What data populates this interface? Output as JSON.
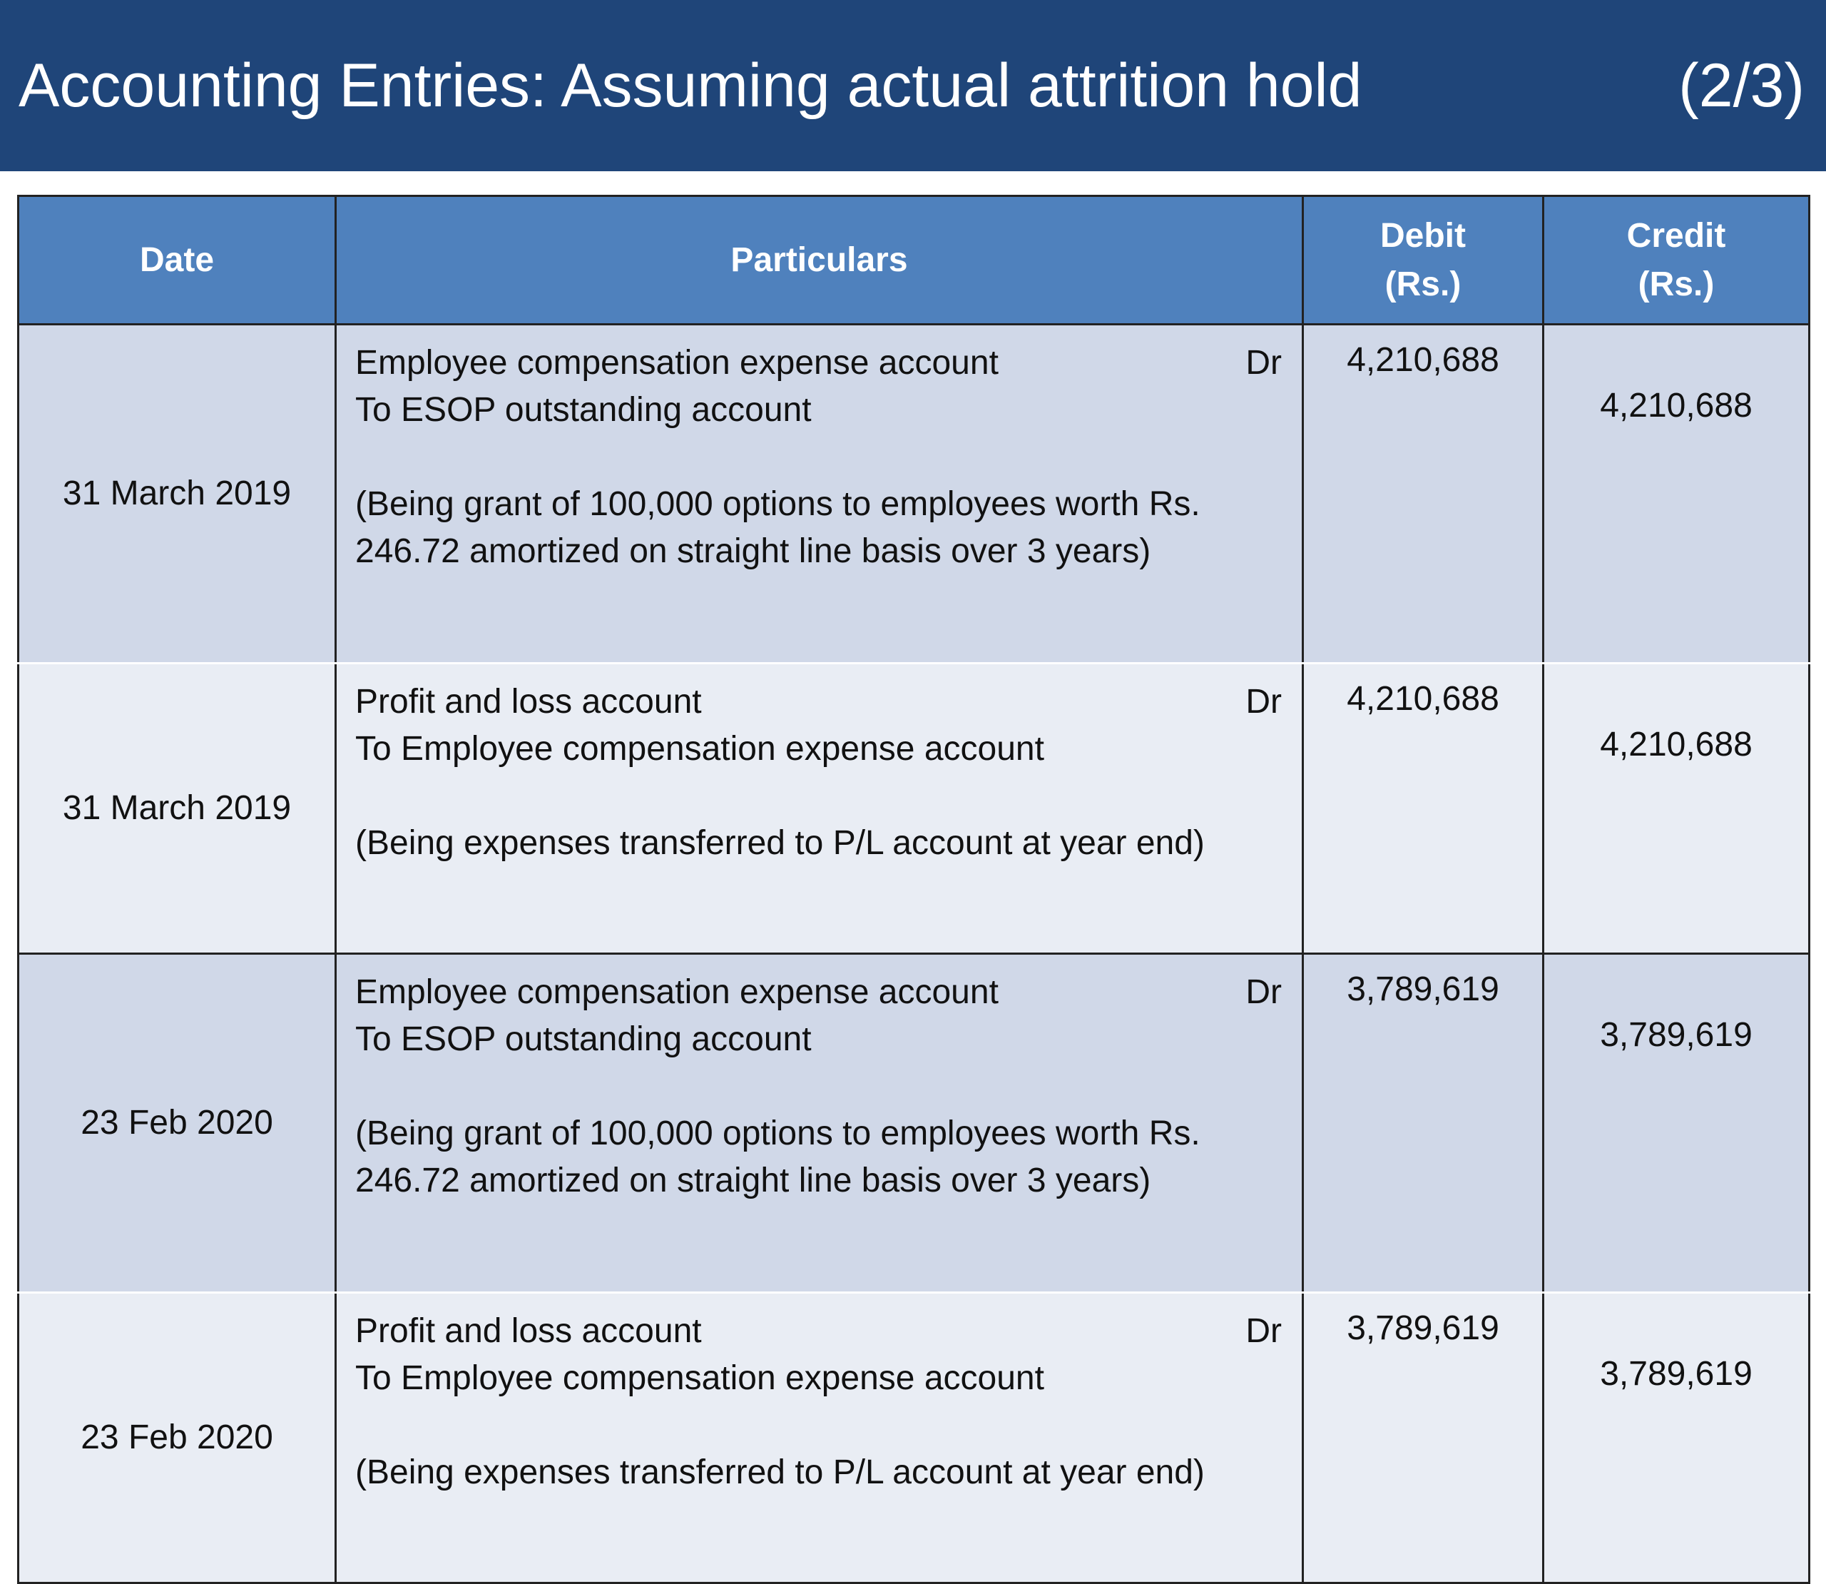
{
  "header": {
    "title": "Accounting Entries: Assuming actual attrition hold",
    "page": "(2/3)"
  },
  "table": {
    "columns": {
      "date": "Date",
      "particulars": "Particulars",
      "debit_line1": "Debit",
      "debit_line2": "(Rs.)",
      "credit_line1": "Credit",
      "credit_line2": "(Rs.)"
    },
    "rows": [
      {
        "date": "31 March 2019",
        "debit_account": "Employee compensation expense account",
        "dr": "Dr",
        "credit_account": "To ESOP outstanding account",
        "narration_line1": "(Being grant of 100,000 options to employees worth Rs.",
        "narration_line2": "246.72 amortized on straight line basis over 3 years)",
        "debit": "4,210,688",
        "credit": "4,210,688"
      },
      {
        "date": "31 March 2019",
        "debit_account": "Profit and loss account",
        "dr": "Dr",
        "credit_account": "To Employee compensation expense account",
        "narration_line1": "(Being expenses transferred to P/L account at year end)",
        "debit": "4,210,688",
        "credit": "4,210,688"
      },
      {
        "date": "23 Feb 2020",
        "debit_account": "Employee compensation expense account",
        "dr": "Dr",
        "credit_account": "To ESOP outstanding account",
        "narration_line1": "(Being grant of 100,000 options to employees worth Rs.",
        "narration_line2": "246.72 amortized on straight line basis over 3 years)",
        "debit": "3,789,619",
        "credit": "3,789,619"
      },
      {
        "date": "23 Feb 2020",
        "debit_account": "Profit and loss account",
        "dr": "Dr",
        "credit_account": "To Employee compensation expense account",
        "narration_line1": "(Being expenses transferred to P/L account at year end)",
        "debit": "3,789,619",
        "credit": "3,789,619"
      }
    ]
  }
}
